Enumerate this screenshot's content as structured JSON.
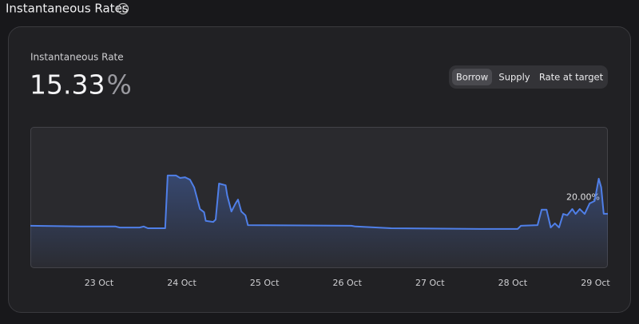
{
  "header": {
    "title": "Instantaneous Rates",
    "info_icon": "i"
  },
  "card": {
    "label": "Instantaneous Rate",
    "rate_value": "15.33",
    "rate_unit": "%",
    "tabs": [
      "Borrow",
      "Supply",
      "Rate at target"
    ],
    "active_tab": "Borrow"
  },
  "chart_data": {
    "type": "line",
    "x": [
      22.17,
      22.77,
      23.2,
      23.25,
      23.49,
      23.54,
      23.59,
      23.8,
      23.83,
      23.93,
      23.98,
      24.04,
      24.1,
      24.15,
      24.22,
      24.27,
      24.29,
      24.38,
      24.41,
      24.45,
      24.53,
      24.55,
      24.6,
      24.65,
      24.68,
      24.72,
      24.77,
      24.8,
      26.05,
      26.1,
      26.53,
      27.6,
      28.06,
      28.1,
      28.3,
      28.35,
      28.41,
      28.46,
      28.51,
      28.56,
      28.61,
      28.66,
      28.72,
      28.76,
      28.81,
      28.87,
      28.93,
      28.99,
      29.04,
      29.07,
      29.1,
      29.15
    ],
    "series": [
      {
        "name": "Borrow",
        "color": "#4f7fe8",
        "values": [
          11.9,
          11.7,
          11.7,
          11.4,
          11.4,
          11.7,
          11.2,
          11.2,
          26.3,
          26.3,
          25.6,
          25.8,
          25.1,
          22.9,
          16.7,
          15.8,
          13.3,
          13.0,
          13.7,
          24.0,
          23.5,
          20.6,
          16.0,
          18.3,
          19.4,
          16.0,
          14.9,
          12.1,
          11.9,
          11.7,
          11.2,
          11.0,
          11.0,
          11.9,
          12.1,
          16.5,
          16.5,
          11.4,
          12.6,
          11.4,
          15.3,
          14.9,
          16.7,
          15.3,
          16.7,
          15.3,
          18.3,
          19.0,
          25.4,
          22.9,
          15.33,
          15.33
        ]
      }
    ],
    "xlim": [
      22.17,
      29.15
    ],
    "xticks": [
      {
        "value": 23,
        "label": "23 Oct"
      },
      {
        "value": 24,
        "label": "24 Oct"
      },
      {
        "value": 25,
        "label": "25 Oct"
      },
      {
        "value": 26,
        "label": "26 Oct"
      },
      {
        "value": 27,
        "label": "27 Oct"
      },
      {
        "value": 28,
        "label": "28 Oct"
      },
      {
        "value": 29,
        "label": "29 Oct"
      }
    ],
    "ylim": [
      0,
      40
    ],
    "yticks": [
      {
        "value": 20,
        "label": "20.00%"
      }
    ],
    "grid": false
  }
}
